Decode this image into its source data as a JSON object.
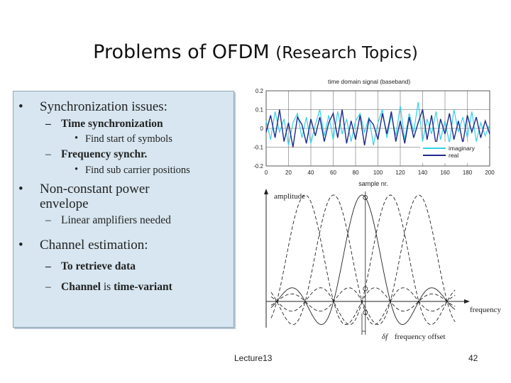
{
  "slide": {
    "title": "Problems of OFDM",
    "title_suffix": "(Research Topics)",
    "footer_left": "Lecture13",
    "page_number": "42"
  },
  "bullets": {
    "b1": "Synchronization issues:",
    "b1_s1": "Time synchronization",
    "b1_s1_a": "Find start of symbols",
    "b1_s2": "Frequency synchr.",
    "b1_s2_a": "Find sub carrier positions",
    "b2_line1": "Non-constant power",
    "b2_line2": "envelope",
    "b2_s1": "Linear amplifiers needed",
    "b3": "Channel estimation:",
    "b3_s1": "To retrieve data",
    "b3_s2_bold1": "Channel",
    "b3_s2_mid": " is ",
    "b3_s2_bold2": "time-variant",
    "bullet_char": "•",
    "dash_char": "–"
  },
  "chart_data": [
    {
      "type": "line",
      "title": "time domain signal (baseband)",
      "xlabel": "sample nr.",
      "ylabel": "",
      "xlim": [
        0,
        200
      ],
      "ylim": [
        -0.2,
        0.2
      ],
      "x_ticks": [
        "0",
        "20",
        "40",
        "60",
        "80",
        "100",
        "120",
        "140",
        "160",
        "180",
        "200"
      ],
      "y_ticks": [
        "0.2",
        "0.1",
        "0",
        "-0.1",
        "-0.2"
      ],
      "grid": true,
      "legend_position": "bottom-right",
      "series": [
        {
          "name": "imaginary",
          "color": "#36d0e6",
          "x": [
            0,
            4,
            8,
            12,
            16,
            20,
            24,
            28,
            32,
            36,
            40,
            44,
            48,
            52,
            56,
            60,
            64,
            68,
            72,
            76,
            80,
            84,
            88,
            92,
            96,
            100,
            104,
            108,
            112,
            116,
            120,
            124,
            128,
            132,
            136,
            140,
            144,
            148,
            152,
            156,
            160,
            164,
            168,
            172,
            176,
            180,
            184,
            188,
            192,
            196,
            200
          ],
          "values": [
            0.04,
            -0.06,
            0.09,
            -0.02,
            0.05,
            -0.09,
            0.03,
            0.08,
            -0.05,
            0.06,
            -0.08,
            0.02,
            0.1,
            -0.04,
            0.07,
            -0.06,
            0.09,
            -0.03,
            0.05,
            -0.07,
            0.04,
            0.08,
            -0.02,
            0.06,
            -0.09,
            0.03,
            0.1,
            -0.05,
            0.07,
            -0.04,
            0.12,
            -0.06,
            0.08,
            -0.02,
            0.14,
            -0.07,
            0.05,
            -0.03,
            0.09,
            -0.06,
            0.04,
            -0.08,
            0.1,
            -0.02,
            0.06,
            -0.05,
            0.09,
            -0.07,
            0.03,
            -0.04,
            0.02
          ]
        },
        {
          "name": "real",
          "color": "#1e2a8a",
          "x": [
            0,
            4,
            8,
            12,
            16,
            20,
            24,
            28,
            32,
            36,
            40,
            44,
            48,
            52,
            56,
            60,
            64,
            68,
            72,
            76,
            80,
            84,
            88,
            92,
            96,
            100,
            104,
            108,
            112,
            116,
            120,
            124,
            128,
            132,
            136,
            140,
            144,
            148,
            152,
            156,
            160,
            164,
            168,
            172,
            176,
            180,
            184,
            188,
            192,
            196,
            200
          ],
          "values": [
            -0.02,
            0.07,
            -0.05,
            0.1,
            -0.07,
            0.03,
            -0.1,
            0.06,
            0.02,
            -0.08,
            0.05,
            -0.04,
            0.06,
            -0.07,
            0.03,
            0.08,
            -0.05,
            0.1,
            -0.08,
            0.04,
            -0.06,
            0.07,
            -0.09,
            0.05,
            0.02,
            -0.06,
            0.08,
            -0.03,
            0.09,
            -0.07,
            0.04,
            -0.08,
            0.06,
            -0.05,
            0.03,
            0.1,
            -0.06,
            0.07,
            -0.09,
            0.05,
            -0.03,
            0.08,
            -0.06,
            0.04,
            -0.08,
            0.07,
            -0.02,
            0.06,
            -0.05,
            0.04,
            -0.03
          ]
        }
      ]
    },
    {
      "type": "line",
      "ylabel": "amplitude",
      "xlabel": "frequency",
      "annotation": "frequency offset",
      "annotation_symbol": "δf",
      "subcarrier_centers": [
        -2,
        -1,
        0,
        1,
        2
      ],
      "spacing": 1,
      "xlim": [
        -3.2,
        3.3
      ],
      "ylim": [
        -0.3,
        1.05
      ],
      "solid_subcarrier": 0,
      "line_styles": [
        "dashed",
        "dashed",
        "solid",
        "dashed",
        "dashed"
      ]
    }
  ]
}
